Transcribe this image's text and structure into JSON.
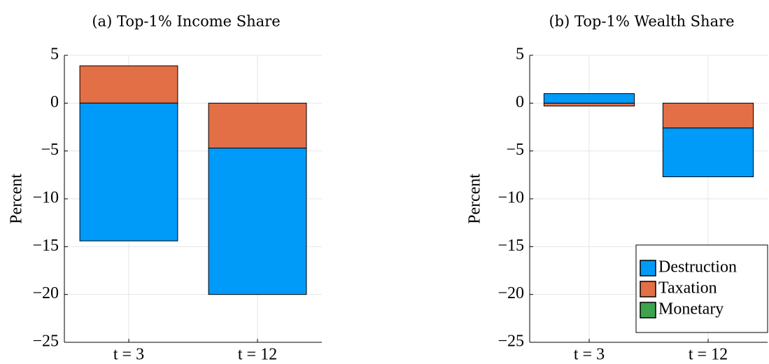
{
  "chart_data": [
    {
      "type": "stacked_bar",
      "title": "(a) Top-1% Income Share",
      "y_label": "Percent",
      "categories": [
        "t = 3",
        "t = 12"
      ],
      "series": [
        {
          "name": "Destruction",
          "color": "#009af9",
          "values": [
            -14.4,
            -15.3
          ]
        },
        {
          "name": "Taxation",
          "color": "#e26f46",
          "values": [
            3.9,
            -4.7
          ]
        },
        {
          "name": "Monetary",
          "color": "#3da44d",
          "values": [
            0,
            0
          ]
        }
      ],
      "ylim": [
        -25,
        5
      ],
      "yticks": [
        {
          "value": -25,
          "label": "−25"
        },
        {
          "value": -20,
          "label": "−20"
        },
        {
          "value": -15,
          "label": "−15"
        },
        {
          "value": -10,
          "label": "−10"
        },
        {
          "value": -5,
          "label": "−5"
        },
        0,
        5
      ],
      "grid": true,
      "legend": "none"
    },
    {
      "type": "stacked_bar",
      "title": "(b) Top-1% Wealth Share",
      "y_label": "Percent",
      "categories": [
        "t = 3",
        "t = 12"
      ],
      "series": [
        {
          "name": "Destruction",
          "color": "#009af9",
          "values": [
            1.0,
            -5.1
          ]
        },
        {
          "name": "Taxation",
          "color": "#e26f46",
          "values": [
            -0.3,
            -2.6
          ]
        },
        {
          "name": "Monetary",
          "color": "#3da44d",
          "values": [
            0,
            0
          ]
        }
      ],
      "ylim": [
        -25,
        5
      ],
      "yticks": [
        {
          "value": -25,
          "label": "−25"
        },
        {
          "value": -20,
          "label": "−20"
        },
        {
          "value": -15,
          "label": "−15"
        },
        {
          "value": -10,
          "label": "−10"
        },
        {
          "value": -5,
          "label": "−5"
        },
        0,
        5
      ],
      "grid": true,
      "legend": "bottom right"
    }
  ]
}
